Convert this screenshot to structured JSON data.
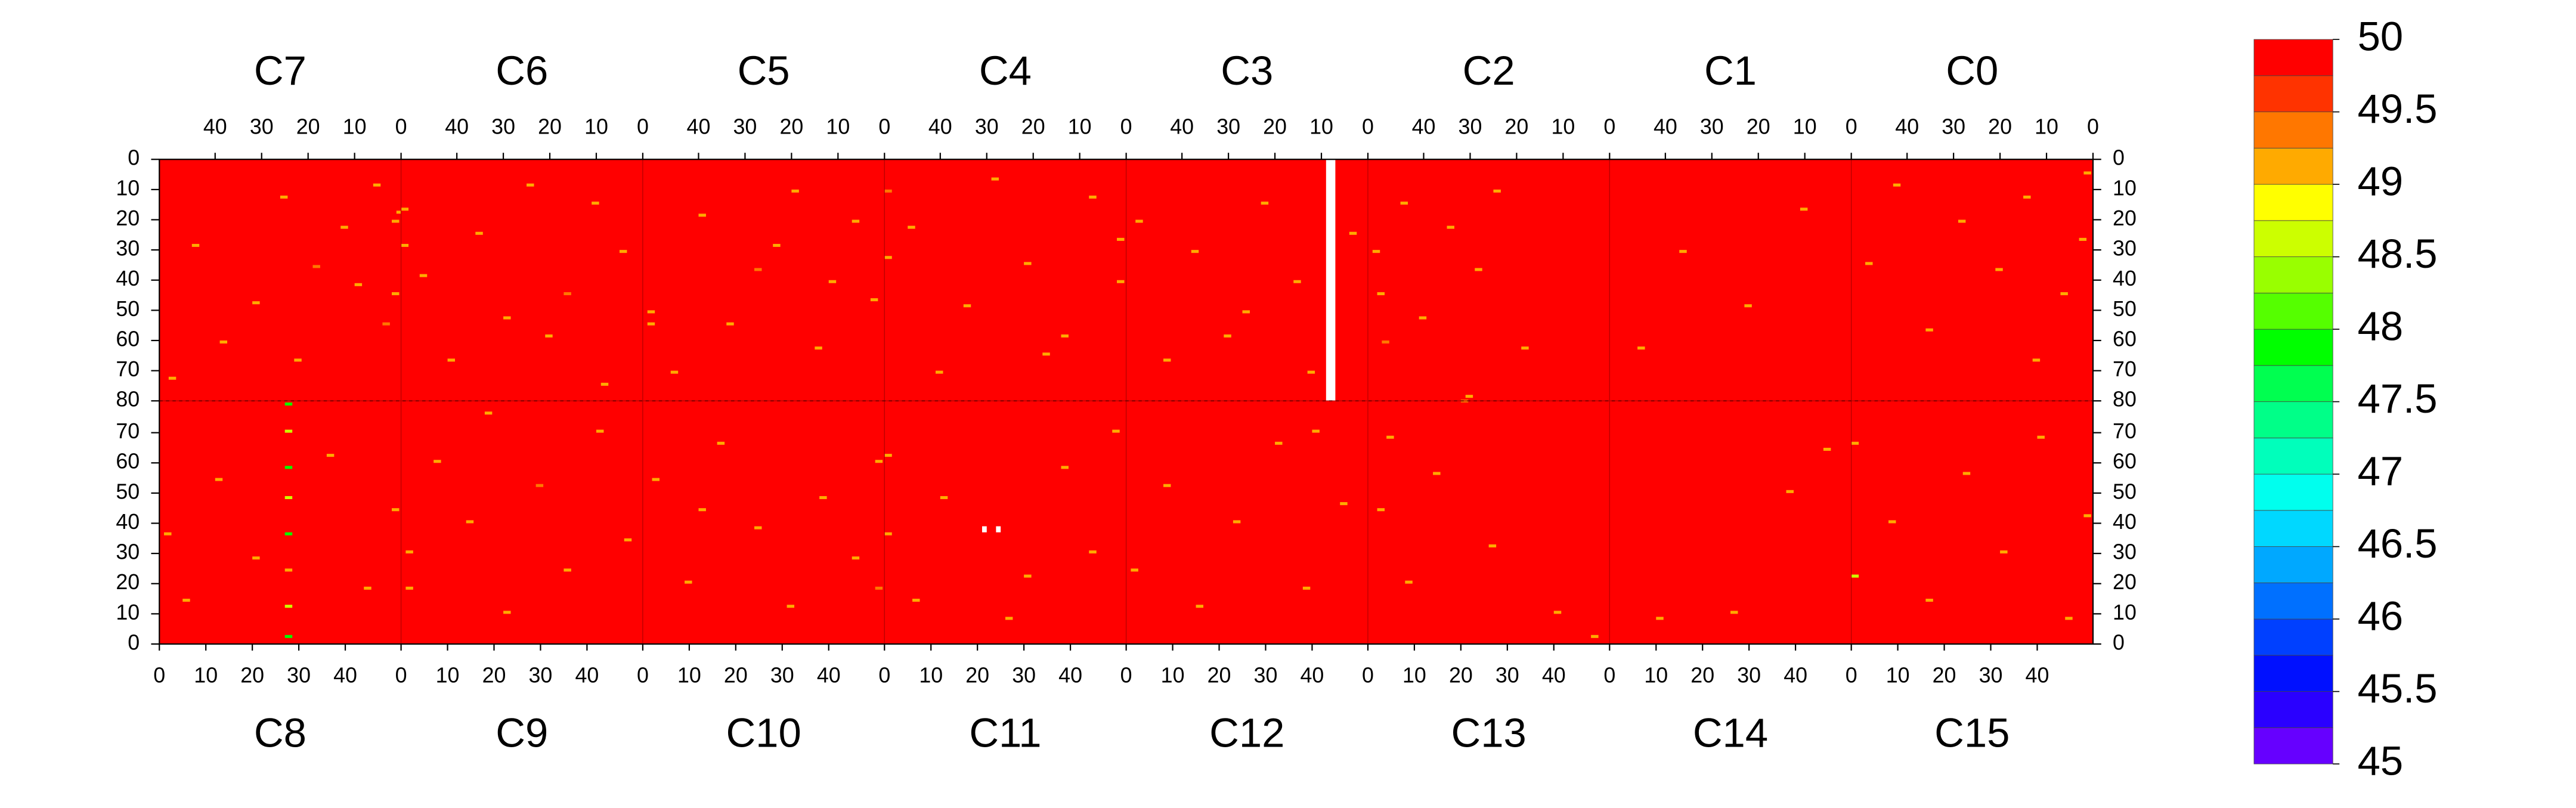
{
  "chart_data": {
    "type": "heatmap",
    "xlim": [
      0,
      52
    ],
    "ylim": [
      0,
      80
    ],
    "xticks": [
      0,
      10,
      20,
      30,
      40
    ],
    "yticks": [
      0,
      10,
      20,
      30,
      40,
      50,
      60,
      70,
      80
    ],
    "top_x_reversed": true,
    "zlim": [
      45,
      50
    ],
    "zticks": [
      45,
      45.5,
      46,
      46.5,
      47,
      47.5,
      48,
      48.5,
      49,
      49.5,
      50
    ],
    "colors": [
      "#6600ff",
      "#2a00ff",
      "#0010ff",
      "#0040ff",
      "#0070ff",
      "#00a8ff",
      "#00d8ff",
      "#00ffee",
      "#00ffbb",
      "#00ff88",
      "#00ff50",
      "#00ff00",
      "#55ff00",
      "#99ff00",
      "#ccff00",
      "#ffff00",
      "#ffaa00",
      "#ff7700",
      "#ff3300",
      "#ff0000"
    ],
    "chips": [
      {
        "name": "C7",
        "half": "top",
        "fill_value": 50,
        "cells": [
          [
            5,
            8,
            49.1
          ],
          [
            12,
            22,
            49.1
          ],
          [
            18,
            35,
            49.3
          ],
          [
            25,
            12,
            49.1
          ],
          [
            31,
            47,
            49.1
          ],
          [
            38,
            60,
            49.1
          ],
          [
            44,
            28,
            49.1
          ],
          [
            49,
            72,
            49.1
          ],
          [
            3,
            54,
            49.3
          ],
          [
            22,
            66,
            49.1
          ],
          [
            0,
            17,
            49.1
          ],
          [
            9,
            41,
            49.1
          ],
          [
            1,
            20,
            49.1
          ],
          [
            1,
            44,
            49.1
          ]
        ],
        "missing": []
      },
      {
        "name": "C6",
        "half": "top",
        "fill_value": 50,
        "cells": [
          [
            4,
            30,
            49.1
          ],
          [
            10,
            14,
            49.1
          ],
          [
            16,
            44,
            49.3
          ],
          [
            24,
            8,
            49.1
          ],
          [
            29,
            52,
            49.1
          ],
          [
            35,
            24,
            49.1
          ],
          [
            41,
            66,
            49.1
          ],
          [
            47,
            38,
            49.1
          ],
          [
            51,
            16,
            49.1
          ],
          [
            51,
            28,
            49.1
          ],
          [
            20,
            58,
            49.1
          ],
          [
            8,
            74,
            49.1
          ]
        ],
        "missing": []
      },
      {
        "name": "C5",
        "half": "top",
        "fill_value": 50,
        "cells": [
          [
            2,
            46,
            49.1
          ],
          [
            6,
            20,
            49.1
          ],
          [
            14,
            62,
            49.1
          ],
          [
            19,
            10,
            49.1
          ],
          [
            27,
            36,
            49.3
          ],
          [
            33,
            54,
            49.1
          ],
          [
            39,
            18,
            49.1
          ],
          [
            45,
            70,
            49.1
          ],
          [
            50,
            50,
            49.1
          ],
          [
            50,
            54,
            49.1
          ],
          [
            23,
            28,
            49.1
          ],
          [
            11,
            40,
            49.1
          ]
        ],
        "missing": []
      },
      {
        "name": "C4",
        "half": "top",
        "fill_value": 50,
        "cells": [
          [
            1,
            26,
            49.1
          ],
          [
            1,
            40,
            49.1
          ],
          [
            7,
            12,
            49.1
          ],
          [
            13,
            58,
            49.1
          ],
          [
            21,
            34,
            49.1
          ],
          [
            28,
            6,
            49.1
          ],
          [
            34,
            48,
            49.1
          ],
          [
            40,
            70,
            49.1
          ],
          [
            46,
            22,
            49.1
          ],
          [
            51,
            10,
            49.3
          ],
          [
            51,
            32,
            49.1
          ],
          [
            17,
            64,
            49.1
          ]
        ],
        "missing": []
      },
      {
        "name": "C3",
        "half": "top",
        "fill_value": 50,
        "cells": [
          [
            3,
            24,
            49.1
          ],
          [
            15,
            40,
            49.1
          ],
          [
            22,
            14,
            49.1
          ],
          [
            30,
            58,
            49.1
          ],
          [
            37,
            30,
            49.1
          ],
          [
            43,
            66,
            49.1
          ],
          [
            49,
            20,
            49.1
          ],
          [
            26,
            50,
            49.1
          ],
          [
            12,
            70,
            49.1
          ]
        ],
        "missing": [
          [
            7,
            9,
            0,
            80
          ]
        ]
      },
      {
        "name": "C2",
        "half": "top",
        "fill_value": 50,
        "cells": [
          [
            50,
            30,
            49.1
          ],
          [
            49,
            44,
            49.1
          ],
          [
            48,
            60,
            49.3
          ],
          [
            44,
            14,
            49.1
          ],
          [
            40,
            52,
            49.1
          ],
          [
            34,
            22,
            49.1
          ],
          [
            28,
            36,
            49.1
          ],
          [
            24,
            10,
            49.1
          ],
          [
            18,
            62,
            49.1
          ],
          [
            30,
            78,
            49.1
          ]
        ],
        "missing": []
      },
      {
        "name": "C1",
        "half": "top",
        "fill_value": 50,
        "cells": [
          [
            10,
            16,
            49.1
          ],
          [
            22,
            48,
            49.1
          ],
          [
            36,
            30,
            49.1
          ],
          [
            45,
            62,
            49.1
          ]
        ],
        "missing": []
      },
      {
        "name": "C0",
        "half": "top",
        "fill_value": 50,
        "cells": [
          [
            1,
            4,
            49.1
          ],
          [
            2,
            26,
            49.1
          ],
          [
            6,
            44,
            49.1
          ],
          [
            14,
            12,
            49.1
          ],
          [
            20,
            36,
            49.1
          ],
          [
            28,
            20,
            49.1
          ],
          [
            35,
            56,
            49.1
          ],
          [
            42,
            8,
            49.1
          ],
          [
            48,
            34,
            49.1
          ],
          [
            12,
            66,
            49.1
          ]
        ],
        "missing": []
      },
      {
        "name": "C8",
        "half": "bottom",
        "fill_value": 50,
        "cells": [
          [
            27,
            2,
            47.8
          ],
          [
            27,
            12,
            48.6
          ],
          [
            27,
            24,
            49.1
          ],
          [
            27,
            36,
            47.8
          ],
          [
            27,
            48,
            48.6
          ],
          [
            27,
            58,
            47.8
          ],
          [
            27,
            70,
            48.6
          ],
          [
            27,
            79,
            47.8
          ],
          [
            1,
            36,
            49.1
          ],
          [
            5,
            14,
            49.1
          ],
          [
            12,
            54,
            49.1
          ],
          [
            20,
            28,
            49.1
          ],
          [
            36,
            62,
            49.1
          ],
          [
            44,
            18,
            49.1
          ],
          [
            50,
            44,
            49.1
          ]
        ],
        "missing": []
      },
      {
        "name": "C9",
        "half": "bottom",
        "fill_value": 50,
        "cells": [
          [
            1,
            18,
            49.1
          ],
          [
            1,
            30,
            49.1
          ],
          [
            7,
            60,
            49.1
          ],
          [
            14,
            40,
            49.1
          ],
          [
            22,
            10,
            49.1
          ],
          [
            29,
            52,
            49.3
          ],
          [
            35,
            24,
            49.1
          ],
          [
            42,
            70,
            49.1
          ],
          [
            48,
            34,
            49.1
          ],
          [
            18,
            76,
            49.1
          ]
        ],
        "missing": []
      },
      {
        "name": "C10",
        "half": "bottom",
        "fill_value": 50,
        "cells": [
          [
            2,
            54,
            49.1
          ],
          [
            9,
            20,
            49.1
          ],
          [
            16,
            66,
            49.1
          ],
          [
            24,
            38,
            49.1
          ],
          [
            31,
            12,
            49.1
          ],
          [
            38,
            48,
            49.1
          ],
          [
            45,
            28,
            49.1
          ],
          [
            50,
            60,
            49.1
          ],
          [
            50,
            18,
            49.3
          ],
          [
            12,
            44,
            49.1
          ]
        ],
        "missing": []
      },
      {
        "name": "C11",
        "half": "bottom",
        "fill_value": 50,
        "cells": [
          [
            0,
            36,
            49.1
          ],
          [
            0,
            62,
            49.1
          ],
          [
            6,
            14,
            49.1
          ],
          [
            12,
            48,
            49.1
          ],
          [
            30,
            22,
            49.1
          ],
          [
            38,
            58,
            49.1
          ],
          [
            44,
            30,
            49.1
          ],
          [
            49,
            70,
            49.1
          ],
          [
            26,
            8,
            49.1
          ]
        ],
        "missing": [
          [
            21,
            22,
            37,
            39
          ],
          [
            24,
            25,
            37,
            39
          ]
        ]
      },
      {
        "name": "C12",
        "half": "bottom",
        "fill_value": 50,
        "cells": [
          [
            1,
            24,
            49.1
          ],
          [
            8,
            52,
            49.1
          ],
          [
            15,
            12,
            49.1
          ],
          [
            23,
            40,
            49.1
          ],
          [
            32,
            66,
            49.1
          ],
          [
            38,
            18,
            49.1
          ],
          [
            46,
            46,
            49.1
          ],
          [
            40,
            70,
            49.1
          ]
        ],
        "missing": []
      },
      {
        "name": "C13",
        "half": "bottom",
        "fill_value": 50,
        "cells": [
          [
            2,
            44,
            49.1
          ],
          [
            4,
            68,
            49.1
          ],
          [
            8,
            20,
            49.1
          ],
          [
            14,
            56,
            49.1
          ],
          [
            20,
            80,
            49.3
          ],
          [
            26,
            32,
            49.1
          ],
          [
            40,
            10,
            49.1
          ],
          [
            48,
            2,
            49.1
          ]
        ],
        "missing": []
      },
      {
        "name": "C14",
        "half": "bottom",
        "fill_value": 50,
        "cells": [
          [
            10,
            8,
            49.1
          ],
          [
            26,
            10,
            49.1
          ],
          [
            38,
            50,
            49.1
          ],
          [
            46,
            64,
            49.1
          ]
        ],
        "missing": []
      },
      {
        "name": "C15",
        "half": "bottom",
        "fill_value": 50,
        "cells": [
          [
            0,
            66,
            49.1
          ],
          [
            0,
            22,
            48.6
          ],
          [
            8,
            40,
            49.1
          ],
          [
            16,
            14,
            49.1
          ],
          [
            24,
            56,
            49.1
          ],
          [
            32,
            30,
            49.1
          ],
          [
            40,
            68,
            49.1
          ],
          [
            46,
            8,
            49.1
          ],
          [
            50,
            42,
            49.1
          ]
        ],
        "missing": []
      }
    ]
  }
}
